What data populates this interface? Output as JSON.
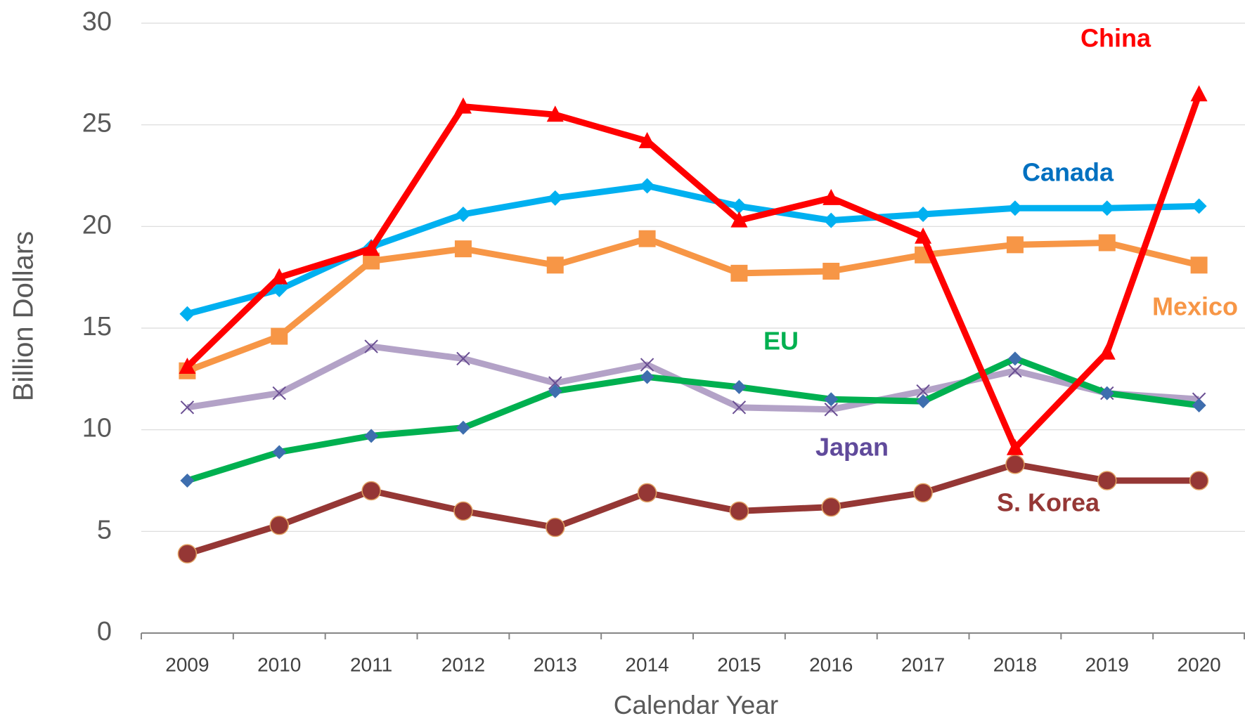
{
  "chart_data": {
    "type": "line",
    "xlabel": "Calendar Year",
    "ylabel": "Billion Dollars",
    "categories": [
      "2009",
      "2010",
      "2011",
      "2012",
      "2013",
      "2014",
      "2015",
      "2016",
      "2017",
      "2018",
      "2019",
      "2020"
    ],
    "ylim": [
      0,
      30
    ],
    "yticks": [
      0,
      5,
      10,
      15,
      20,
      25,
      30
    ],
    "grid": true,
    "series": [
      {
        "name": "China",
        "color": "#ff0000",
        "label_color": "#ff0000",
        "marker": "triangle",
        "values": [
          13.1,
          17.5,
          18.9,
          25.9,
          25.5,
          24.2,
          20.3,
          21.4,
          19.5,
          9.1,
          13.8,
          26.5
        ]
      },
      {
        "name": "Canada",
        "color": "#00b0f0",
        "label_color": "#0070c0",
        "marker": "diamond",
        "values": [
          15.7,
          16.9,
          19.0,
          20.6,
          21.4,
          22.0,
          21.0,
          20.3,
          20.6,
          20.9,
          20.9,
          21.0
        ]
      },
      {
        "name": "Mexico",
        "color": "#f79646",
        "label_color": "#f79646",
        "marker": "square",
        "values": [
          12.9,
          14.6,
          18.3,
          18.9,
          18.1,
          19.4,
          17.7,
          17.8,
          18.6,
          19.1,
          19.2,
          18.1
        ]
      },
      {
        "name": "EU",
        "color": "#00b050",
        "label_color": "#00b050",
        "marker": "diamond-blue",
        "values": [
          7.5,
          8.9,
          9.7,
          10.1,
          11.9,
          12.6,
          12.1,
          11.5,
          11.4,
          13.5,
          11.8,
          11.2
        ]
      },
      {
        "name": "Japan",
        "color": "#b3a2c7",
        "label_color": "#604a9b",
        "marker": "x",
        "values": [
          11.1,
          11.8,
          14.1,
          13.5,
          12.3,
          13.2,
          11.1,
          11.0,
          11.9,
          12.9,
          11.8,
          11.5
        ]
      },
      {
        "name": "S. Korea",
        "color": "#953735",
        "label_color": "#953735",
        "marker": "circle",
        "values": [
          3.9,
          5.3,
          7.0,
          6.0,
          5.2,
          6.9,
          6.0,
          6.2,
          6.9,
          8.3,
          7.5,
          7.5
        ]
      }
    ]
  }
}
